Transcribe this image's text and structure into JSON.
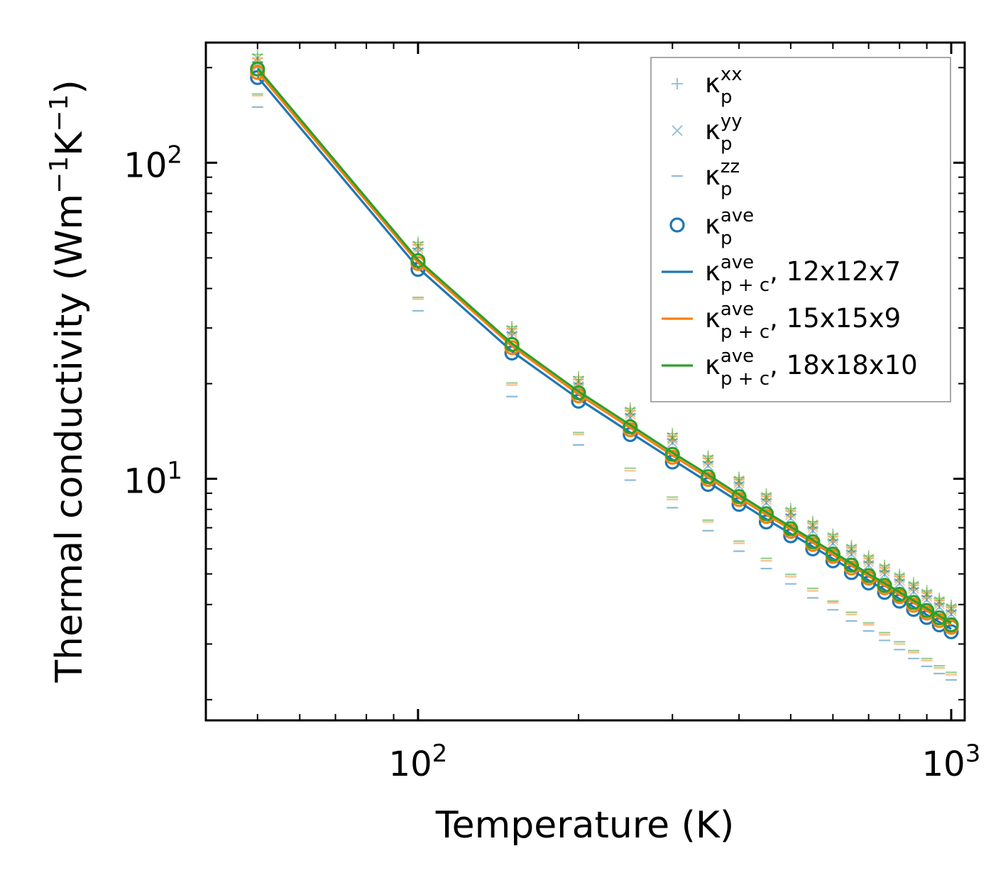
{
  "colors": {
    "blue": "#1f77b4",
    "orange": "#ff7f0e",
    "green": "#2ca02c",
    "axis": "#000000",
    "legend_border": "#8c8c8c"
  },
  "chart_data": {
    "type": "line",
    "xscale": "log",
    "yscale": "log",
    "title": "",
    "xlabel": "Temperature (K)",
    "ylabel_base": "Thermal conductivity (Wm",
    "ylabel_sup1": "−1",
    "ylabel_mid": "K",
    "ylabel_sup2": "−1",
    "ylabel_end": ")",
    "xlim": [
      40,
      1060
    ],
    "ylim": [
      1.72,
      240
    ],
    "xticks": [
      {
        "base": "10",
        "exp": "2",
        "value": 100
      },
      {
        "base": "10",
        "exp": "3",
        "value": 1000
      }
    ],
    "yticks": [
      {
        "base": "10",
        "exp": "1",
        "value": 10
      },
      {
        "base": "10",
        "exp": "2",
        "value": 100
      }
    ],
    "legend_position": "top-right",
    "legend": [
      {
        "kappa": "κ",
        "sub": "p",
        "sup": "xx",
        "suffix": "",
        "marker": "plus"
      },
      {
        "kappa": "κ",
        "sub": "p",
        "sup": "yy",
        "suffix": "",
        "marker": "cross"
      },
      {
        "kappa": "κ",
        "sub": "p",
        "sup": "zz",
        "suffix": "",
        "marker": "dash"
      },
      {
        "kappa": "κ",
        "sub": "p",
        "sup": "ave",
        "suffix": "",
        "marker": "circle"
      },
      {
        "kappa": "κ",
        "sub": "p + c",
        "sup": "ave",
        "suffix": ", 12x12x7",
        "marker": "line-blue"
      },
      {
        "kappa": "κ",
        "sub": "p + c",
        "sup": "ave",
        "suffix": ", 15x15x9",
        "marker": "line-orange"
      },
      {
        "kappa": "κ",
        "sub": "p + c",
        "sup": "ave",
        "suffix": ", 18x18x10",
        "marker": "line-green"
      }
    ],
    "x": [
      50,
      100,
      150,
      200,
      250,
      300,
      350,
      400,
      450,
      500,
      550,
      600,
      650,
      700,
      750,
      800,
      850,
      900,
      950,
      1000
    ],
    "series": [
      {
        "name": "12x12x7",
        "color_key": "blue",
        "kappa_xx": [
          208,
          53.5,
          29.0,
          20.0,
          16.0,
          13.3,
          11.3,
          9.7,
          8.6,
          7.7,
          7.0,
          6.4,
          5.9,
          5.45,
          5.1,
          4.78,
          4.5,
          4.25,
          4.02,
          3.82
        ],
        "kappa_yy": [
          202,
          52.0,
          28.3,
          19.6,
          15.6,
          13.0,
          11.0,
          9.5,
          8.4,
          7.5,
          6.85,
          6.25,
          5.77,
          5.33,
          4.98,
          4.67,
          4.39,
          4.14,
          3.93,
          3.73
        ],
        "kappa_zz": [
          150,
          34.0,
          18.2,
          12.8,
          9.9,
          8.1,
          6.85,
          5.9,
          5.2,
          4.65,
          4.2,
          3.85,
          3.55,
          3.3,
          3.08,
          2.88,
          2.7,
          2.55,
          2.42,
          2.31
        ],
        "kappa_ave": [
          186,
          46.0,
          25.0,
          17.6,
          13.8,
          11.3,
          9.6,
          8.3,
          7.3,
          6.6,
          6.0,
          5.5,
          5.05,
          4.68,
          4.37,
          4.1,
          3.86,
          3.64,
          3.45,
          3.28
        ],
        "kappa_pc": [
          187,
          46.5,
          25.3,
          17.9,
          14.0,
          11.5,
          9.75,
          8.45,
          7.45,
          6.7,
          6.1,
          5.58,
          5.15,
          4.77,
          4.45,
          4.17,
          3.93,
          3.71,
          3.52,
          3.35
        ]
      },
      {
        "name": "15x15x9",
        "color_key": "orange",
        "kappa_xx": [
          214,
          55.0,
          29.8,
          20.6,
          16.4,
          13.6,
          11.6,
          9.95,
          8.8,
          7.9,
          7.2,
          6.55,
          6.05,
          5.6,
          5.22,
          4.9,
          4.6,
          4.35,
          4.12,
          3.92
        ],
        "kappa_yy": [
          208,
          53.5,
          29.0,
          20.1,
          16.0,
          13.3,
          11.3,
          9.7,
          8.6,
          7.7,
          7.02,
          6.4,
          5.9,
          5.47,
          5.1,
          4.78,
          4.5,
          4.25,
          4.02,
          3.82
        ],
        "kappa_zz": [
          163,
          37.0,
          19.8,
          13.8,
          10.6,
          8.6,
          7.3,
          6.25,
          5.5,
          4.9,
          4.42,
          4.05,
          3.72,
          3.45,
          3.21,
          3.0,
          2.82,
          2.66,
          2.52,
          2.4
        ],
        "kappa_ave": [
          193,
          48.0,
          26.0,
          18.3,
          14.3,
          11.7,
          9.95,
          8.6,
          7.6,
          6.82,
          6.2,
          5.68,
          5.22,
          4.85,
          4.52,
          4.24,
          3.98,
          3.76,
          3.56,
          3.39
        ],
        "kappa_pc": [
          194,
          48.3,
          26.3,
          18.5,
          14.5,
          11.85,
          10.1,
          8.7,
          7.7,
          6.92,
          6.28,
          5.75,
          5.3,
          4.92,
          4.59,
          4.3,
          4.05,
          3.82,
          3.62,
          3.45
        ]
      },
      {
        "name": "18x18x10",
        "color_key": "green",
        "kappa_xx": [
          220,
          56.0,
          30.3,
          21.0,
          16.7,
          13.9,
          11.8,
          10.1,
          8.95,
          8.05,
          7.32,
          6.68,
          6.15,
          5.7,
          5.32,
          4.98,
          4.68,
          4.42,
          4.19,
          3.98
        ],
        "kappa_yy": [
          214,
          54.5,
          29.5,
          20.4,
          16.3,
          13.5,
          11.5,
          9.85,
          8.75,
          7.85,
          7.15,
          6.52,
          6.0,
          5.57,
          5.2,
          4.87,
          4.58,
          4.32,
          4.09,
          3.89
        ],
        "kappa_zz": [
          165,
          37.5,
          20.1,
          14.0,
          10.8,
          8.75,
          7.4,
          6.35,
          5.6,
          4.98,
          4.5,
          4.1,
          3.78,
          3.5,
          3.26,
          3.05,
          2.86,
          2.7,
          2.56,
          2.44
        ],
        "kappa_ave": [
          198,
          49.0,
          26.6,
          18.7,
          14.6,
          11.95,
          10.15,
          8.78,
          7.75,
          6.95,
          6.32,
          5.78,
          5.33,
          4.94,
          4.6,
          4.31,
          4.06,
          3.83,
          3.63,
          3.45
        ],
        "kappa_pc": [
          199,
          49.3,
          26.8,
          18.9,
          14.8,
          12.1,
          10.3,
          8.9,
          7.85,
          7.05,
          6.4,
          5.86,
          5.4,
          5.0,
          4.67,
          4.38,
          4.12,
          3.89,
          3.68,
          3.5
        ]
      }
    ]
  }
}
